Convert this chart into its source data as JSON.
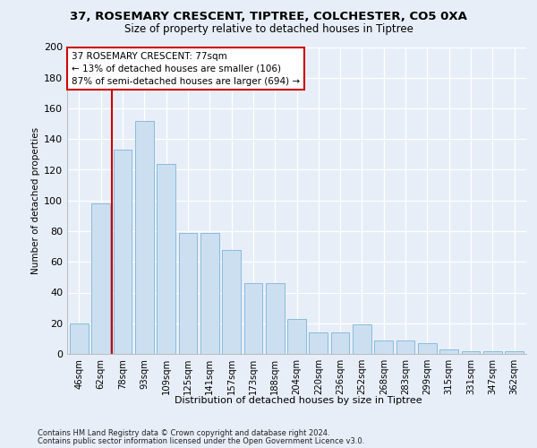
{
  "title1": "37, ROSEMARY CRESCENT, TIPTREE, COLCHESTER, CO5 0XA",
  "title2": "Size of property relative to detached houses in Tiptree",
  "xlabel": "Distribution of detached houses by size in Tiptree",
  "ylabel": "Number of detached properties",
  "categories": [
    "46sqm",
    "62sqm",
    "78sqm",
    "93sqm",
    "109sqm",
    "125sqm",
    "141sqm",
    "157sqm",
    "173sqm",
    "188sqm",
    "204sqm",
    "220sqm",
    "236sqm",
    "252sqm",
    "268sqm",
    "283sqm",
    "299sqm",
    "315sqm",
    "331sqm",
    "347sqm",
    "362sqm"
  ],
  "values": [
    20,
    98,
    133,
    152,
    124,
    79,
    79,
    68,
    46,
    46,
    23,
    14,
    14,
    19,
    9,
    9,
    7,
    3,
    2,
    2,
    2
  ],
  "bar_color": "#ccdff0",
  "bar_edge_color": "#7ab4d8",
  "vline_color": "#cc0000",
  "annotation_line1": "37 ROSEMARY CRESCENT: 77sqm",
  "annotation_line2": "← 13% of detached houses are smaller (106)",
  "annotation_line3": "87% of semi-detached houses are larger (694) →",
  "annotation_box_edge": "#cc0000",
  "ylim": [
    0,
    200
  ],
  "yticks": [
    0,
    20,
    40,
    60,
    80,
    100,
    120,
    140,
    160,
    180,
    200
  ],
  "footer1": "Contains HM Land Registry data © Crown copyright and database right 2024.",
  "footer2": "Contains public sector information licensed under the Open Government Licence v3.0.",
  "bg_color": "#e8eef8",
  "plot_bg_color": "#e8eef8"
}
